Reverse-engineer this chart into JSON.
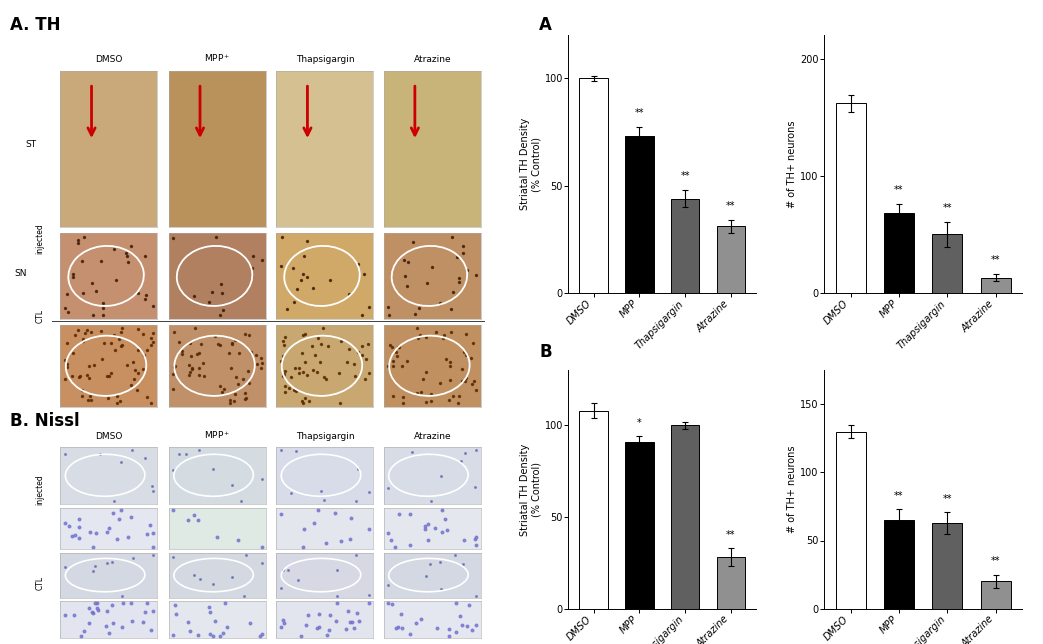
{
  "background_color": "#ffffff",
  "panel_A_label": "A. TH",
  "panel_B_label": "B. Nissl",
  "col_header_labels": [
    "DMSO",
    "MPP$^+$",
    "Thapsigargin",
    "Atrazine"
  ],
  "chart_A_label": "A",
  "chart_B_label": "B",
  "bar_colors_A1": [
    "white",
    "black",
    "#606060",
    "#909090"
  ],
  "bar_colors_A2": [
    "white",
    "black",
    "#606060",
    "#909090"
  ],
  "bar_colors_B1": [
    "white",
    "black",
    "#606060",
    "#909090"
  ],
  "bar_colors_B2": [
    "white",
    "black",
    "#606060",
    "#909090"
  ],
  "chart_A1_values": [
    100,
    73,
    44,
    31
  ],
  "chart_A1_errors": [
    1.2,
    4.5,
    4.0,
    3.0
  ],
  "chart_A1_ylabel": "Striatal TH Density\n(% Control)",
  "chart_A1_ylim": [
    0,
    120
  ],
  "chart_A1_yticks": [
    0,
    50,
    100
  ],
  "chart_A1_sig": [
    "",
    "**",
    "**",
    "**"
  ],
  "chart_A2_values": [
    162,
    68,
    50,
    13
  ],
  "chart_A2_errors": [
    7,
    8,
    11,
    3
  ],
  "chart_A2_ylabel": "# of TH+ neurons",
  "chart_A2_ylim": [
    0,
    220
  ],
  "chart_A2_yticks": [
    0,
    100,
    200
  ],
  "chart_A2_sig": [
    "",
    "**",
    "**",
    "**"
  ],
  "chart_B1_values": [
    108,
    91,
    100,
    28
  ],
  "chart_B1_errors": [
    4,
    3,
    2,
    5
  ],
  "chart_B1_ylabel": "Striatal TH Density\n(% Control)",
  "chart_B1_ylim": [
    0,
    130
  ],
  "chart_B1_yticks": [
    0,
    50,
    100
  ],
  "chart_B1_sig": [
    "",
    "*",
    "",
    "**"
  ],
  "chart_B2_values": [
    130,
    65,
    63,
    20
  ],
  "chart_B2_errors": [
    5,
    8,
    8,
    5
  ],
  "chart_B2_ylabel": "# of TH+ neurons",
  "chart_B2_ylim": [
    0,
    175
  ],
  "chart_B2_yticks": [
    0,
    50,
    100,
    150
  ],
  "chart_B2_sig": [
    "",
    "**",
    "**",
    "**"
  ],
  "categories": [
    "DMSO",
    "MPP",
    "Thapsigargin",
    "Atrazine"
  ],
  "tick_fontsize": 7,
  "label_fontsize": 7,
  "sig_fontsize": 7
}
